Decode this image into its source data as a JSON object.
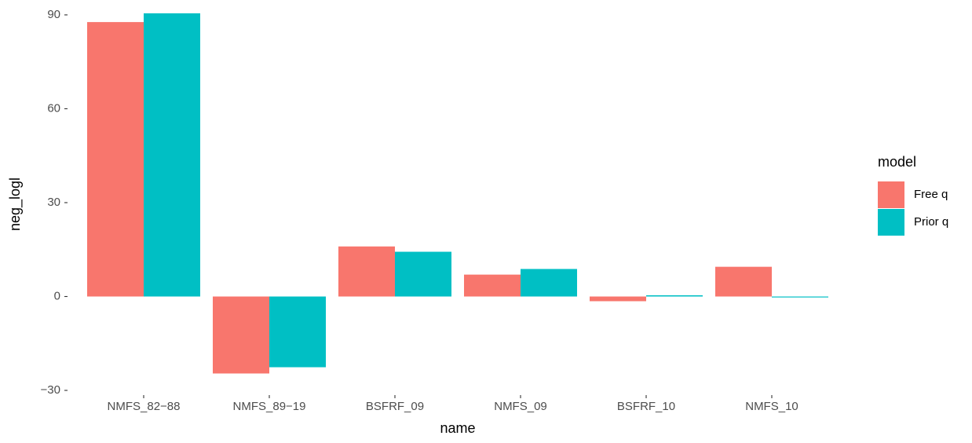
{
  "chart_data": {
    "type": "bar",
    "x_label": "name",
    "y_label": "neg_logl",
    "categories": [
      "NMFS_82−88",
      "NMFS_89−19",
      "BSFRF_09",
      "NMFS_09",
      "BSFRF_10",
      "NMFS_10"
    ],
    "series": [
      {
        "name": "Free q",
        "color": "#F8766D",
        "values": [
          87.7,
          -24.6,
          16.0,
          7.0,
          -1.5,
          9.5
        ]
      },
      {
        "name": "Prior q",
        "color": "#00BFC4",
        "values": [
          90.5,
          -22.6,
          14.3,
          8.8,
          0.4,
          -0.3
        ]
      }
    ],
    "legend_title": "model",
    "ylim": [
      -31,
      93.5
    ],
    "yticks": [
      {
        "value": -30,
        "label": "−30"
      },
      0,
      30,
      60,
      90
    ]
  }
}
